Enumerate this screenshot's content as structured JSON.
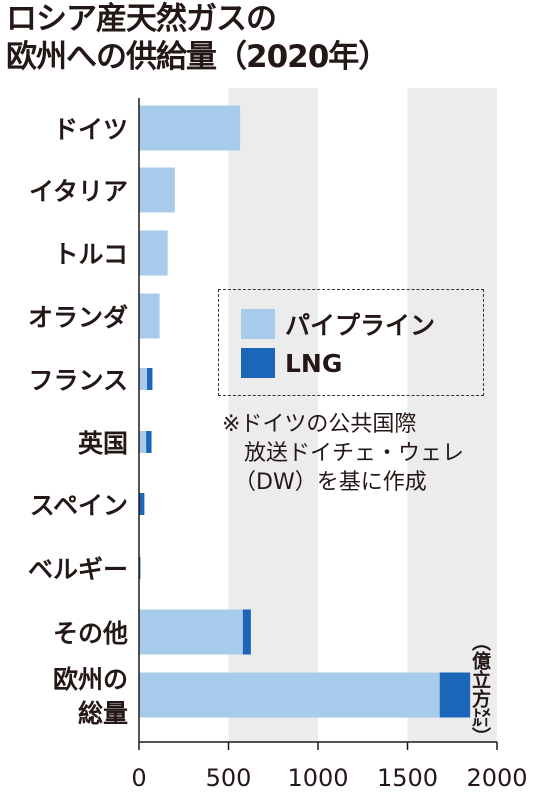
{
  "colors": {
    "pipeline": "#a9cbeb",
    "lng": "#1b66b8",
    "band": "#ececec",
    "axis": "#231815"
  },
  "chart_data": {
    "type": "bar",
    "orientation": "horizontal",
    "stacked": true,
    "title": [
      "ロシア産天然ガスの",
      "欧州への供給量（2020年）"
    ],
    "unit": "（億立方㍍）",
    "categories": [
      "ドイツ",
      "イタリア",
      "トルコ",
      "オランダ",
      "フランス",
      "英国",
      "スペイン",
      "ベルギー",
      "その他",
      "欧州の\n総量"
    ],
    "series": [
      {
        "name": "パイプライン",
        "values": [
          565,
          200,
          160,
          115,
          45,
          40,
          0,
          0,
          580,
          1680
        ]
      },
      {
        "name": "LNG",
        "values": [
          0,
          0,
          0,
          0,
          30,
          30,
          30,
          8,
          45,
          170
        ]
      }
    ],
    "xlim": [
      0,
      2000
    ],
    "xticks": [
      0,
      500,
      1000,
      1500,
      2000
    ],
    "legend": "center-right",
    "note": [
      "※ドイツの公共国際",
      "放送ドイチェ・ウェレ",
      "（DW）を基に作成"
    ]
  }
}
